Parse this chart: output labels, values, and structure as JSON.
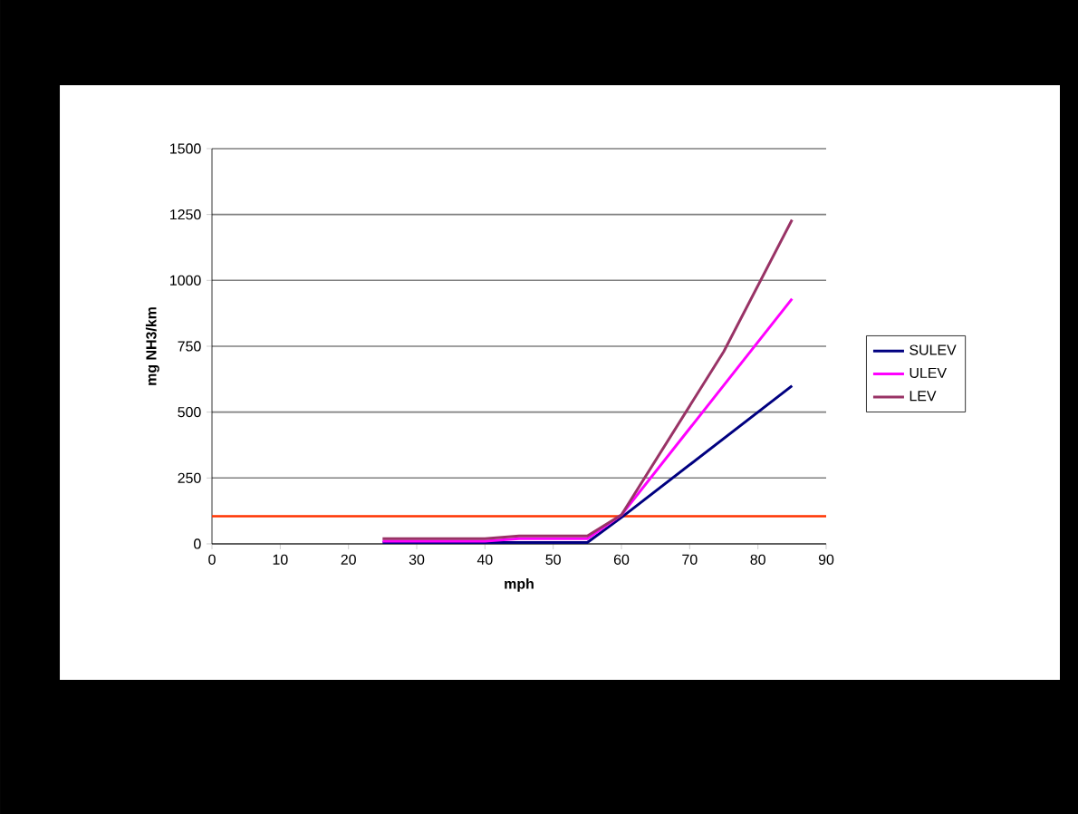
{
  "chart_data": {
    "type": "line",
    "xlabel": "mph",
    "ylabel": "mg NH3/km",
    "xlim": [
      0,
      90
    ],
    "xticks": [
      0,
      10,
      20,
      30,
      40,
      50,
      60,
      70,
      80,
      90
    ],
    "ylim": [
      0,
      1500
    ],
    "yticks": [
      0,
      250,
      500,
      750,
      1000,
      1250,
      1500
    ],
    "grid": "y",
    "legend": "right",
    "series": [
      {
        "name": "SULEV",
        "color": "#000080",
        "x": [
          25,
          40,
          55,
          60,
          85
        ],
        "values": [
          5,
          5,
          5,
          100,
          600
        ]
      },
      {
        "name": "ULEV",
        "color": "#ff00ff",
        "x": [
          25,
          40,
          45,
          55,
          60,
          85
        ],
        "values": [
          10,
          10,
          20,
          20,
          110,
          930
        ]
      },
      {
        "name": "LEV",
        "color": "#993366",
        "x": [
          25,
          40,
          45,
          55,
          60,
          75,
          85
        ],
        "values": [
          20,
          20,
          30,
          30,
          110,
          730,
          1230
        ]
      }
    ],
    "ref_lines": [
      {
        "axis": "y",
        "value": 105,
        "color": "#ff3300"
      }
    ]
  }
}
